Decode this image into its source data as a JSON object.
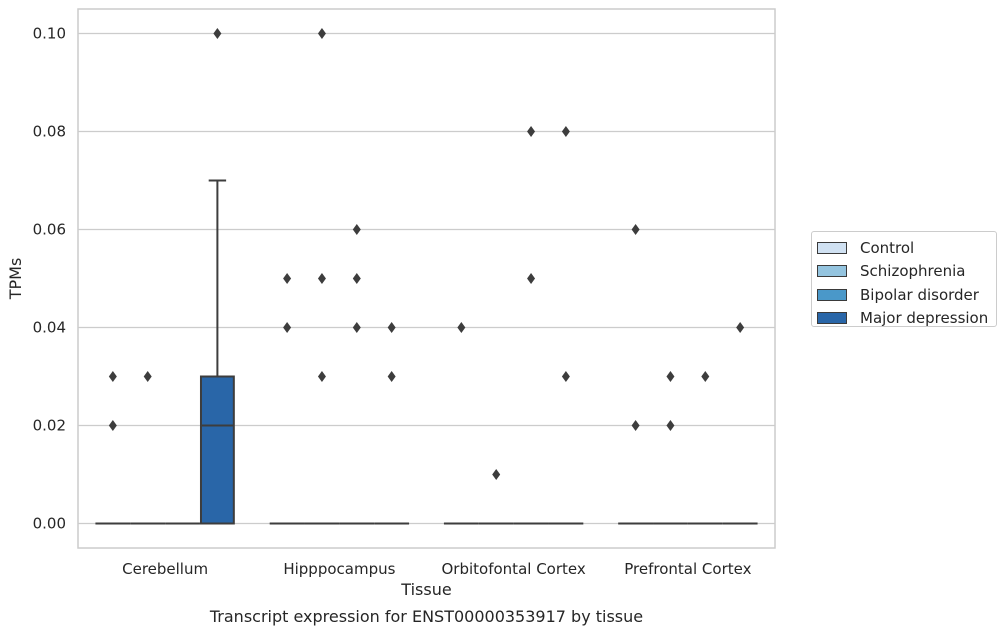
{
  "chart_data": {
    "type": "box",
    "title": "",
    "caption": "Transcript expression for ENST00000353917 by tissue",
    "xlabel": "Tissue",
    "ylabel": "TPMs",
    "ylim": [
      -0.005,
      0.105
    ],
    "yticks": [
      0.0,
      0.02,
      0.04,
      0.06,
      0.08,
      0.1
    ],
    "ytick_labels": [
      "0.00",
      "0.02",
      "0.04",
      "0.06",
      "0.08",
      "0.10"
    ],
    "grid": "horizontal",
    "legend_position": "right",
    "categories": [
      "Cerebellum",
      "Hipppocampus",
      "Orbitofontal Cortex",
      "Prefrontal Cortex"
    ],
    "series": [
      {
        "name": "Control",
        "color": "#d0e1f2",
        "boxes": [
          {
            "q1": 0,
            "median": 0,
            "q3": 0,
            "whisker_low": 0,
            "whisker_high": 0,
            "outliers": [
              0.03,
              0.02
            ]
          },
          {
            "q1": 0,
            "median": 0,
            "q3": 0,
            "whisker_low": 0,
            "whisker_high": 0,
            "outliers": [
              0.05,
              0.04
            ]
          },
          {
            "q1": 0,
            "median": 0,
            "q3": 0,
            "whisker_low": 0,
            "whisker_high": 0,
            "outliers": [
              0.04
            ]
          },
          {
            "q1": 0,
            "median": 0,
            "q3": 0,
            "whisker_low": 0,
            "whisker_high": 0,
            "outliers": [
              0.06,
              0.02
            ]
          }
        ]
      },
      {
        "name": "Schizophrenia",
        "color": "#94c4df",
        "boxes": [
          {
            "q1": 0,
            "median": 0,
            "q3": 0,
            "whisker_low": 0,
            "whisker_high": 0,
            "outliers": [
              0.03
            ]
          },
          {
            "q1": 0,
            "median": 0,
            "q3": 0,
            "whisker_low": 0,
            "whisker_high": 0,
            "outliers": [
              0.1,
              0.05,
              0.03
            ]
          },
          {
            "q1": 0,
            "median": 0,
            "q3": 0,
            "whisker_low": 0,
            "whisker_high": 0,
            "outliers": [
              0.01
            ]
          },
          {
            "q1": 0,
            "median": 0,
            "q3": 0,
            "whisker_low": 0,
            "whisker_high": 0,
            "outliers": [
              0.03,
              0.02
            ]
          }
        ]
      },
      {
        "name": "Bipolar disorder",
        "color": "#4a98c9",
        "boxes": [
          {
            "q1": 0,
            "median": 0,
            "q3": 0,
            "whisker_low": 0,
            "whisker_high": 0,
            "outliers": []
          },
          {
            "q1": 0,
            "median": 0,
            "q3": 0,
            "whisker_low": 0,
            "whisker_high": 0,
            "outliers": [
              0.06,
              0.05,
              0.04
            ]
          },
          {
            "q1": 0,
            "median": 0,
            "q3": 0,
            "whisker_low": 0,
            "whisker_high": 0,
            "outliers": [
              0.08,
              0.05
            ]
          },
          {
            "q1": 0,
            "median": 0,
            "q3": 0,
            "whisker_low": 0,
            "whisker_high": 0,
            "outliers": [
              0.03
            ]
          }
        ]
      },
      {
        "name": "Major depression",
        "color": "#2966a8",
        "boxes": [
          {
            "q1": 0,
            "median": 0.02,
            "q3": 0.03,
            "whisker_low": 0,
            "whisker_high": 0.07,
            "outliers": [
              0.1
            ]
          },
          {
            "q1": 0,
            "median": 0,
            "q3": 0,
            "whisker_low": 0,
            "whisker_high": 0,
            "outliers": [
              0.04,
              0.03
            ]
          },
          {
            "q1": 0,
            "median": 0,
            "q3": 0,
            "whisker_low": 0,
            "whisker_high": 0,
            "outliers": [
              0.08,
              0.03
            ]
          },
          {
            "q1": 0,
            "median": 0,
            "q3": 0,
            "whisker_low": 0,
            "whisker_high": 0,
            "outliers": [
              0.04
            ]
          }
        ]
      }
    ]
  }
}
